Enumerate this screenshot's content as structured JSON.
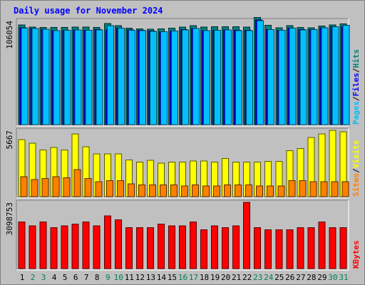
{
  "chart_data": {
    "type": "bar",
    "title": "Daily usage for November 2024",
    "categories": [
      "1",
      "2",
      "3",
      "4",
      "5",
      "6",
      "7",
      "8",
      "9",
      "10",
      "11",
      "12",
      "13",
      "14",
      "15",
      "16",
      "17",
      "18",
      "19",
      "20",
      "21",
      "22",
      "23",
      "24",
      "25",
      "26",
      "27",
      "28",
      "29",
      "30",
      "31"
    ],
    "weekend_days": [
      "2",
      "3",
      "9",
      "10",
      "16",
      "17",
      "23",
      "24",
      "30",
      "31"
    ],
    "panels": [
      {
        "id": "hits",
        "max_label": "106054",
        "ylim": [
          0,
          106054
        ],
        "legend": [
          {
            "label": "Pages",
            "color": "#00c0ff"
          },
          {
            "label": "Files",
            "color": "#0000ff"
          },
          {
            "label": "Hits",
            "color": "#008080"
          }
        ],
        "series": [
          {
            "name": "Hits",
            "color": "#008080",
            "values": [
              101800,
              99600,
              99000,
              99300,
              99300,
              99600,
              99500,
              99300,
              103300,
              100900,
              98300,
              97700,
              97400,
              97800,
              98300,
              99600,
              100900,
              99500,
              99900,
              99900,
              99800,
              99600,
              109500,
              101400,
              98700,
              100900,
              99300,
              98900,
              100500,
              101600,
              102700
            ]
          },
          {
            "name": "Files",
            "color": "#0000ff",
            "values": [
              98700,
              98000,
              97500,
              96000,
              96300,
              96600,
              96300,
              96800,
              96600,
              98300,
              96500,
              96200,
              95500,
              94800,
              95600,
              96900,
              98000,
              96000,
              96400,
              96600,
              96100,
              96100,
              106600,
              97000,
              96200,
              98600,
              96800,
              97000,
              98900,
              99900,
              99900
            ]
          },
          {
            "name": "Pages",
            "color": "#00c0ff",
            "values": [
              98600,
              97900,
              97400,
              95900,
              96200,
              96500,
              96200,
              96700,
              100800,
              98300,
              96400,
              96000,
              95200,
              94700,
              95500,
              96700,
              97900,
              95900,
              96300,
              96500,
              96000,
              96000,
              106100,
              96900,
              96100,
              98500,
              96700,
              96900,
              98800,
              99800,
              101400
            ]
          }
        ]
      },
      {
        "id": "visits",
        "max_label": "5667",
        "ylim": [
          0,
          5667
        ],
        "legend": [
          {
            "label": "Sites",
            "color": "#ff8000"
          },
          {
            "label": "Visits",
            "color": "#ffff00"
          }
        ],
        "series": [
          {
            "name": "Visits",
            "color": "#ffff00",
            "values": [
              4870,
              4580,
              3990,
              4200,
              3990,
              5350,
              4280,
              3670,
              3670,
              3670,
              3140,
              2950,
              3120,
              2850,
              2950,
              2950,
              3060,
              3060,
              2950,
              3270,
              2950,
              2950,
              2950,
              3030,
              3030,
              3930,
              4110,
              5050,
              5350,
              5670,
              5560
            ]
          },
          {
            "name": "Sites",
            "color": "#ff8000",
            "values": [
              1720,
              1450,
              1540,
              1720,
              1630,
              2330,
              1540,
              1270,
              1360,
              1360,
              1090,
              1000,
              1000,
              1000,
              1000,
              910,
              1000,
              910,
              910,
              1000,
              1000,
              1000,
              910,
              910,
              910,
              1360,
              1360,
              1270,
              1270,
              1270,
              1270
            ]
          }
        ]
      },
      {
        "id": "kbytes",
        "max_label": "3098753",
        "ylim": [
          0,
          3098753
        ],
        "legend": [
          {
            "label": "KBytes",
            "color": "#ff0000"
          }
        ],
        "series": [
          {
            "name": "KBytes",
            "color": "#ff0000",
            "values": [
              2190000,
              2000000,
              2190000,
              1910000,
              2000000,
              2090000,
              2190000,
              2000000,
              2470000,
              2280000,
              1910000,
              1910000,
              1910000,
              2090000,
              2000000,
              2000000,
              2190000,
              1810000,
              2000000,
              1910000,
              2000000,
              3100000,
              1910000,
              1810000,
              1810000,
              1810000,
              1910000,
              1910000,
              2190000,
              1910000,
              1910000
            ]
          }
        ]
      }
    ]
  }
}
